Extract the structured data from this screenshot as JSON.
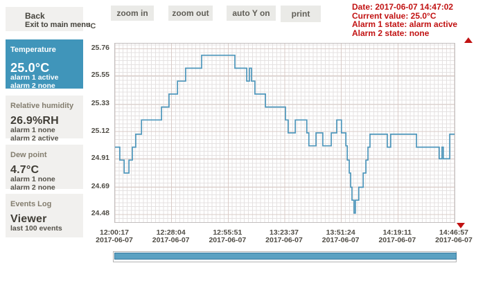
{
  "sidebar": {
    "back": {
      "title": "Back",
      "subtitle": "Exit to main menu"
    },
    "panels": [
      {
        "id": "temperature",
        "label": "Temperature",
        "value": "25.0°C",
        "line1": "alarm 1 active",
        "line2": "alarm 2 none",
        "active": true
      },
      {
        "id": "humidity",
        "label": "Relative humidity",
        "value": "26.9%RH",
        "line1": "alarm 1 none",
        "line2": "alarm 2 active",
        "active": false
      },
      {
        "id": "dewpoint",
        "label": "Dew point",
        "value": "4.7°C",
        "line1": "alarm 1 none",
        "line2": "alarm 2 none",
        "active": false
      },
      {
        "id": "events",
        "label": "Events Log",
        "value": "Viewer",
        "line1": "last 100 events",
        "line2": null,
        "active": false
      }
    ]
  },
  "toolbar": {
    "buttons": [
      "zoom in",
      "zoom out",
      "auto Y on",
      "print"
    ]
  },
  "status": {
    "date": "Date: 2017-06-07 14:47:02",
    "current": "Current value: 25.0°C",
    "alarm1": "Alarm 1 state: alarm active",
    "alarm2": "Alarm 2 state: none"
  },
  "colors": {
    "accent_blue": "#4095ba",
    "line_blue": "#4d96bb",
    "alarm_red": "#c11212",
    "scrollbar_blue": "#5ba1c2",
    "grid_minor": "#e4e1e1",
    "grid_major": "#d9cbc7"
  },
  "chart_data": {
    "type": "line",
    "subtype": "step",
    "series_name": "Temperature",
    "unit": "°C",
    "y_ticks": [
      25.76,
      25.55,
      25.33,
      25.12,
      24.91,
      24.69,
      24.48
    ],
    "ylim": [
      24.42,
      25.8
    ],
    "x_tick_times": [
      "12:00:17",
      "12:28:04",
      "12:55:51",
      "13:23:37",
      "13:51:24",
      "14:19:11",
      "14:46:57"
    ],
    "x_tick_date": "2017-06-07",
    "grid": "on",
    "series": [
      {
        "name": "Temperature",
        "color": "#4d96bb",
        "points": [
          [
            0.0,
            25.0
          ],
          [
            0.014,
            24.9
          ],
          [
            0.027,
            24.8
          ],
          [
            0.041,
            24.9
          ],
          [
            0.051,
            25.0
          ],
          [
            0.061,
            25.1
          ],
          [
            0.078,
            25.21
          ],
          [
            0.137,
            25.31
          ],
          [
            0.159,
            25.41
          ],
          [
            0.184,
            25.51
          ],
          [
            0.208,
            25.61
          ],
          [
            0.255,
            25.71
          ],
          [
            0.353,
            25.61
          ],
          [
            0.388,
            25.51
          ],
          [
            0.396,
            25.61
          ],
          [
            0.402,
            25.51
          ],
          [
            0.412,
            25.41
          ],
          [
            0.443,
            25.31
          ],
          [
            0.502,
            25.21
          ],
          [
            0.51,
            25.11
          ],
          [
            0.531,
            25.21
          ],
          [
            0.565,
            25.11
          ],
          [
            0.571,
            25.01
          ],
          [
            0.592,
            25.11
          ],
          [
            0.612,
            25.01
          ],
          [
            0.637,
            25.11
          ],
          [
            0.653,
            25.21
          ],
          [
            0.667,
            25.11
          ],
          [
            0.68,
            25.01
          ],
          [
            0.684,
            24.9
          ],
          [
            0.69,
            24.8
          ],
          [
            0.694,
            24.69
          ],
          [
            0.698,
            24.59
          ],
          [
            0.704,
            24.49
          ],
          [
            0.708,
            24.59
          ],
          [
            0.718,
            24.69
          ],
          [
            0.731,
            24.8
          ],
          [
            0.739,
            24.9
          ],
          [
            0.745,
            25.0
          ],
          [
            0.751,
            25.1
          ],
          [
            0.802,
            25.0
          ],
          [
            0.812,
            25.1
          ],
          [
            0.888,
            25.0
          ],
          [
            0.955,
            24.91
          ],
          [
            0.963,
            25.0
          ],
          [
            0.967,
            24.91
          ],
          [
            0.986,
            25.1
          ]
        ]
      }
    ]
  }
}
